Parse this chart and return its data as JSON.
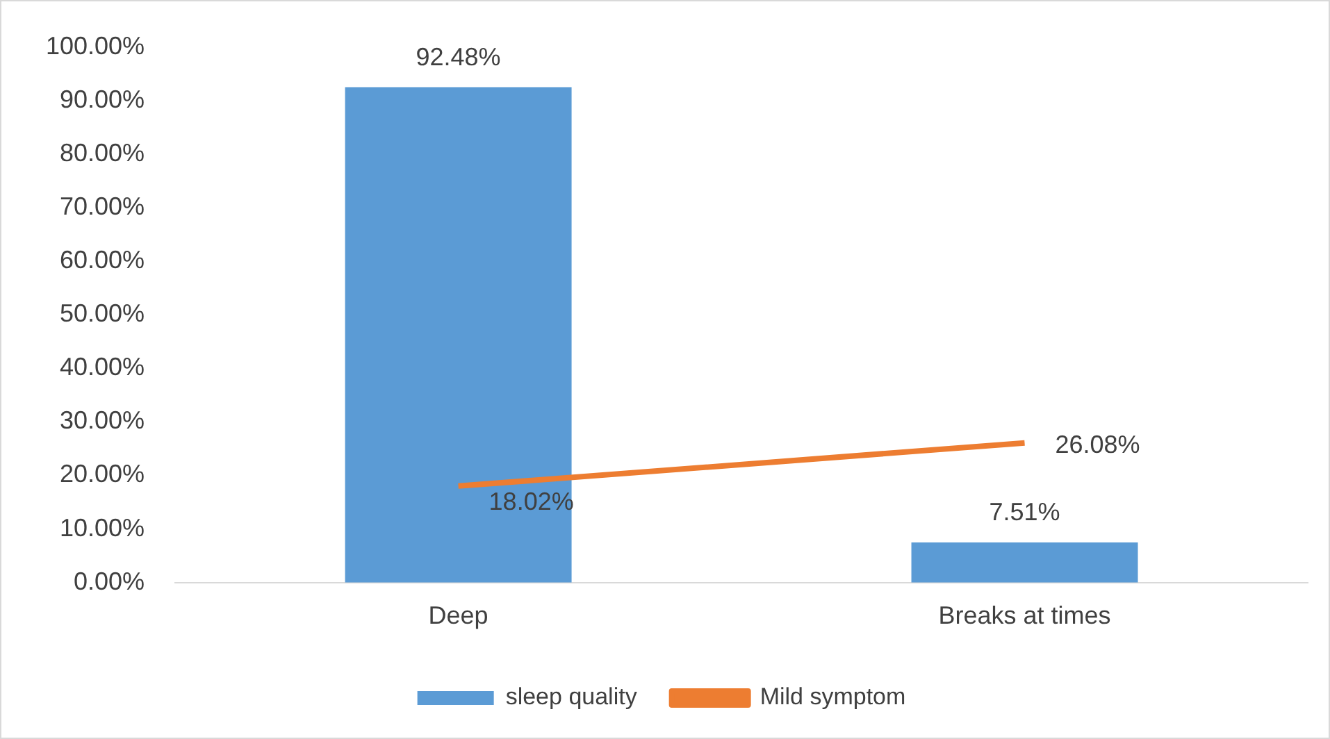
{
  "chart_data": {
    "type": "bar",
    "categories": [
      "Deep",
      "Breaks at times"
    ],
    "series": [
      {
        "name": "sleep quality",
        "color": "#5b9bd5",
        "values": [
          92.48,
          7.51
        ],
        "value_labels": [
          "92.48%",
          "7.51%"
        ]
      },
      {
        "name": "Mild symptom",
        "type": "line",
        "color": "#ed7d31",
        "values": [
          18.02,
          26.08
        ],
        "value_labels": [
          "18.02%",
          "26.08%"
        ]
      }
    ],
    "ylim": [
      0,
      100
    ],
    "yticks": [
      {
        "value": 0,
        "label": "0.00%"
      },
      {
        "value": 10,
        "label": "10.00%"
      },
      {
        "value": 20,
        "label": "20.00%"
      },
      {
        "value": 30,
        "label": "30.00%"
      },
      {
        "value": 40,
        "label": "40.00%"
      },
      {
        "value": 50,
        "label": "50.00%"
      },
      {
        "value": 60,
        "label": "60.00%"
      },
      {
        "value": 70,
        "label": "70.00%"
      },
      {
        "value": 80,
        "label": "80.00%"
      },
      {
        "value": 90,
        "label": "90.00%"
      },
      {
        "value": 100,
        "label": "100.00%"
      }
    ],
    "grid": false,
    "legend": "bottom",
    "marker": "none",
    "line_style": "solid"
  }
}
